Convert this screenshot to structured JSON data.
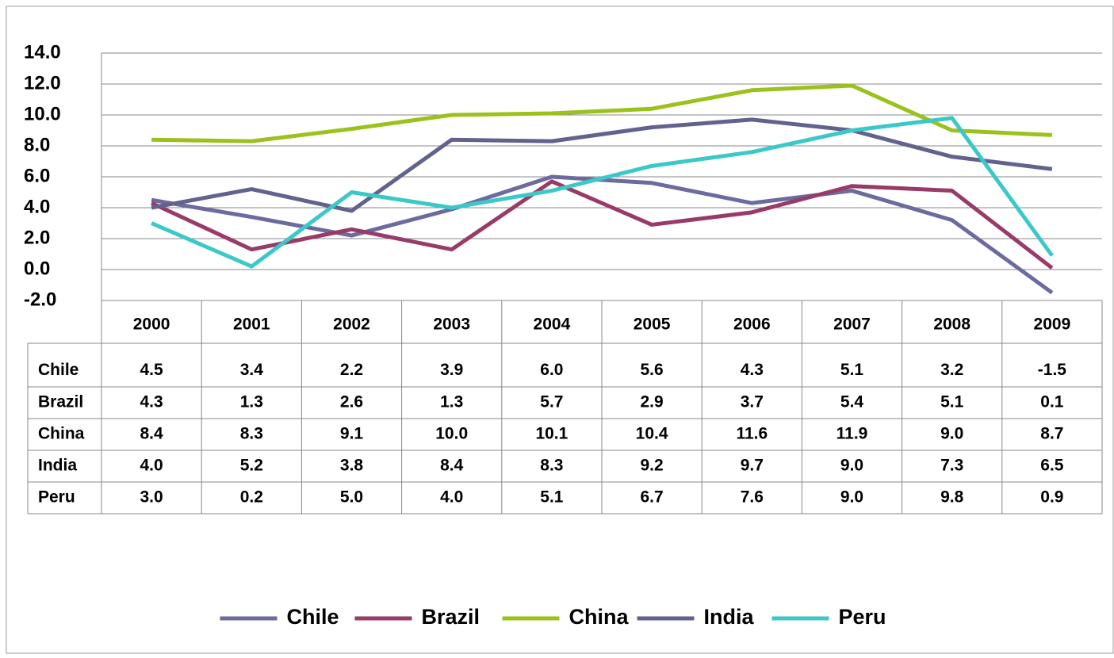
{
  "chart_data": {
    "type": "line",
    "categories": [
      "2000",
      "2001",
      "2002",
      "2003",
      "2004",
      "2005",
      "2006",
      "2007",
      "2008",
      "2009"
    ],
    "series": [
      {
        "name": "Chile",
        "color": "#6b6b9f",
        "values": [
          4.5,
          3.4,
          2.2,
          3.9,
          6.0,
          5.6,
          4.3,
          5.1,
          3.2,
          -1.5
        ],
        "value_labels": [
          "4.5",
          "3.4",
          "2.2",
          "3.9",
          "6.0",
          "5.6",
          "4.3",
          "5.1",
          "3.2",
          "-1.5"
        ]
      },
      {
        "name": "Brazil",
        "color": "#983b68",
        "values": [
          4.3,
          1.3,
          2.6,
          1.3,
          5.7,
          2.9,
          3.7,
          5.4,
          5.1,
          0.1
        ],
        "value_labels": [
          "4.3",
          "1.3",
          "2.6",
          "1.3",
          "5.7",
          "2.9",
          "3.7",
          "5.4",
          "5.1",
          "0.1"
        ]
      },
      {
        "name": "China",
        "color": "#9bc21c",
        "values": [
          8.4,
          8.3,
          9.1,
          10.0,
          10.1,
          10.4,
          11.6,
          11.9,
          9.0,
          8.7
        ],
        "value_labels": [
          "8.4",
          "8.3",
          "9.1",
          "10.0",
          "10.1",
          "10.4",
          "11.6",
          "11.9",
          "9.0",
          "8.7"
        ]
      },
      {
        "name": "India",
        "color": "#62628f",
        "values": [
          4.0,
          5.2,
          3.8,
          8.4,
          8.3,
          9.2,
          9.7,
          9.0,
          7.3,
          6.5
        ],
        "value_labels": [
          "4.0",
          "5.2",
          "3.8",
          "8.4",
          "8.3",
          "9.2",
          "9.7",
          "9.0",
          "7.3",
          "6.5"
        ]
      },
      {
        "name": "Peru",
        "color": "#3cc8c8",
        "values": [
          3.0,
          0.2,
          5.0,
          4.0,
          5.1,
          6.7,
          7.6,
          9.0,
          9.8,
          0.9
        ],
        "value_labels": [
          "3.0",
          "0.2",
          "5.0",
          "4.0",
          "5.1",
          "6.7",
          "7.6",
          "9.0",
          "9.8",
          "0.9"
        ]
      }
    ],
    "ylim": [
      -2,
      14
    ],
    "yticks": [
      {
        "value": -2,
        "label": "-2.0"
      },
      {
        "value": 0,
        "label": "0.0"
      },
      {
        "value": 2,
        "label": "2.0"
      },
      {
        "value": 4,
        "label": "4.0"
      },
      {
        "value": 6,
        "label": "6.0"
      },
      {
        "value": 8,
        "label": "8.0"
      },
      {
        "value": 10,
        "label": "10.0"
      },
      {
        "value": 12,
        "label": "12.0"
      },
      {
        "value": 14,
        "label": "14.0"
      }
    ],
    "grid": true,
    "legend": "bottom"
  }
}
